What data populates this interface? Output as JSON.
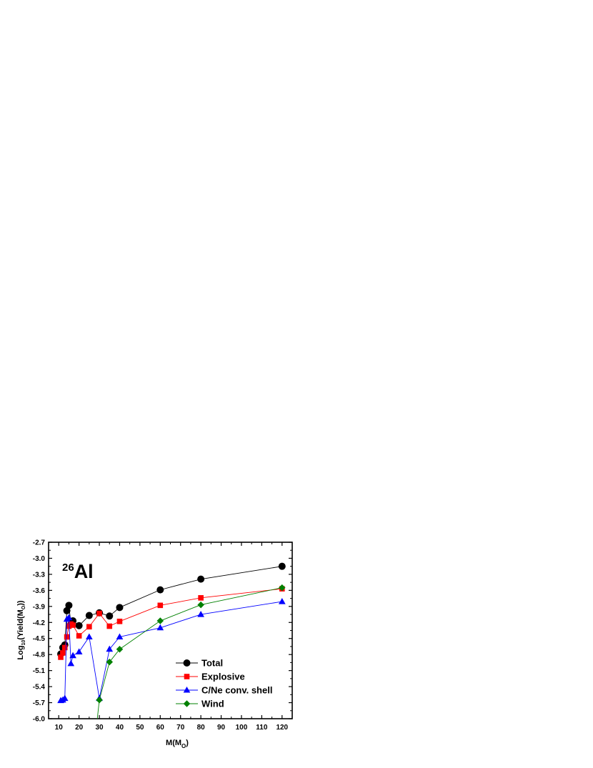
{
  "chart_data": {
    "type": "line",
    "annotation": {
      "super": "26",
      "base": "Al"
    },
    "xlabel": {
      "base": "M(M",
      "sub": "O",
      "close": ")"
    },
    "ylabel": {
      "base": "Log",
      "sub10": "10",
      "mid": "(Yield(M",
      "sub": "O",
      "close": "))"
    },
    "xlim": [
      5,
      125
    ],
    "ylim": [
      -6.0,
      -2.7
    ],
    "x_ticks": [
      10,
      20,
      30,
      40,
      50,
      60,
      70,
      80,
      90,
      100,
      110,
      120
    ],
    "y_ticks": [
      -6.0,
      -5.7,
      -5.4,
      -5.1,
      -4.8,
      -4.5,
      -4.2,
      -3.9,
      -3.6,
      -3.3,
      -3.0,
      -2.7
    ],
    "x_tick_labels": [
      "10",
      "20",
      "30",
      "40",
      "50",
      "60",
      "70",
      "80",
      "90",
      "100",
      "110",
      "120"
    ],
    "y_tick_labels": [
      "-6.0",
      "-5.7",
      "-5.4",
      "-5.1",
      "-4.8",
      "-4.5",
      "-4.2",
      "-3.9",
      "-3.6",
      "-3.3",
      "-3.0",
      "-2.7"
    ],
    "legend_position": "lower-right",
    "series": [
      {
        "name": "Total",
        "color": "#000000",
        "marker": "circle",
        "x": [
          11,
          12,
          13,
          14,
          15,
          16,
          17,
          20,
          25,
          30,
          35,
          40,
          60,
          80,
          120
        ],
        "y": [
          -4.79,
          -4.67,
          -4.62,
          -3.98,
          -3.88,
          -4.23,
          -4.17,
          -4.26,
          -4.07,
          -4.02,
          -4.08,
          -3.92,
          -3.59,
          -3.39,
          -3.15
        ]
      },
      {
        "name": "Explosive",
        "color": "#ff0000",
        "marker": "square",
        "x": [
          11,
          12,
          13,
          14,
          15,
          16,
          17,
          20,
          25,
          30,
          35,
          40,
          60,
          80,
          120
        ],
        "y": [
          -4.85,
          -4.77,
          -4.67,
          -4.47,
          -4.27,
          -4.23,
          -4.25,
          -4.45,
          -4.28,
          -4.03,
          -4.27,
          -4.18,
          -3.88,
          -3.74,
          -3.57
        ]
      },
      {
        "name": "C/Ne conv. shell",
        "color": "#0000ff",
        "marker": "triangle",
        "x": [
          11,
          12,
          13,
          14,
          15,
          16,
          17,
          20,
          25,
          30,
          35,
          40,
          60,
          80,
          120
        ],
        "y": [
          -5.66,
          -5.65,
          -5.62,
          -4.14,
          -4.11,
          -4.97,
          -4.82,
          -4.75,
          -4.47,
          -5.62,
          -4.7,
          -4.47,
          -4.3,
          -4.05,
          -3.81
        ]
      },
      {
        "name": "Wind",
        "color": "#008000",
        "marker": "diamond",
        "x": [
          30,
          35,
          40,
          60,
          80,
          120
        ],
        "y": [
          -5.65,
          -4.94,
          -4.7,
          -4.17,
          -3.87,
          -3.55
        ],
        "lead_in_from": [
          29,
          -6.0
        ]
      }
    ]
  }
}
